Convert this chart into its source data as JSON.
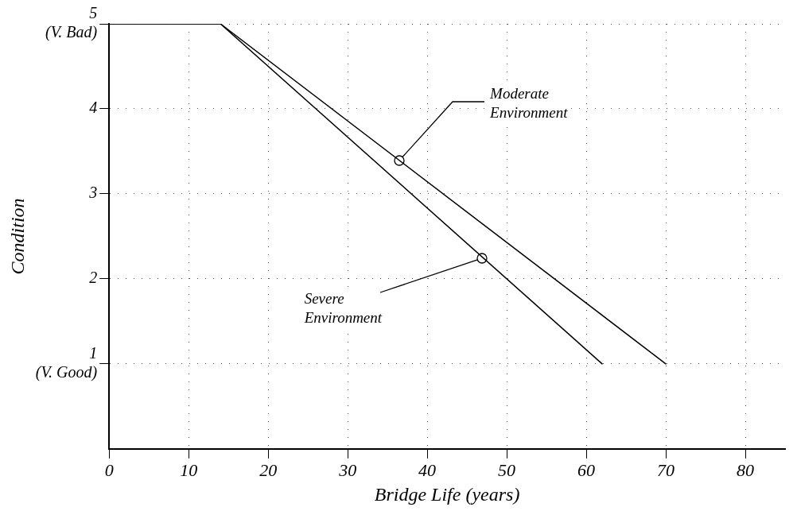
{
  "chart_data": {
    "type": "line",
    "xlabel": "Bridge Life (years)",
    "ylabel": "Condition",
    "series": [
      {
        "color": "#000000",
        "x": [
          0,
          14,
          70
        ],
        "values": [
          5,
          5,
          1
        ]
      },
      {
        "color": "#000000",
        "x": [
          0,
          14,
          62
        ],
        "values": [
          5,
          5,
          1
        ]
      }
    ],
    "xlim": [
      0,
      85
    ],
    "xticks": [
      0,
      10,
      20,
      30,
      40,
      50,
      60,
      70,
      80
    ],
    "ylim": [
      0,
      5
    ],
    "yticks": [
      {
        "value": 1,
        "label": "1\n(V. Good)"
      },
      2,
      3,
      4,
      {
        "value": 5,
        "label": "5\n(V. Bad)"
      }
    ],
    "grid": true,
    "legend": false,
    "marker": "none",
    "line_style": "solid",
    "annotations": [
      {
        "text": "Moderate Environment",
        "x": 36.5,
        "y": 3.39
      },
      {
        "text": "Severe Environment",
        "x": 46.9,
        "y": 2.24
      }
    ]
  }
}
